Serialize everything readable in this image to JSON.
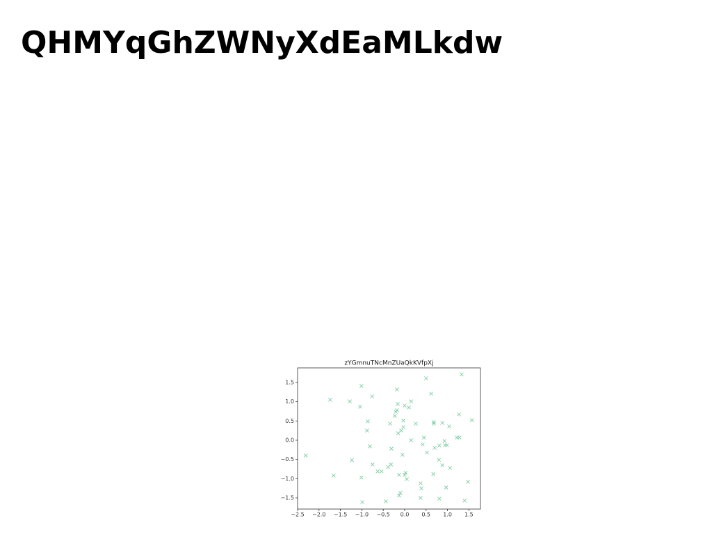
{
  "heading": "QHMYqGhZWNyXdEaMLkdw",
  "chart_data": {
    "type": "scatter",
    "title": "zYGmnuTNcMnZUaQkKVfpXj",
    "color": "#3cb371",
    "marker": "x",
    "x": [
      -2.31,
      -1.74,
      -1.66,
      -1.28,
      -1.23,
      -1.01,
      -1.04,
      -0.86,
      -0.88,
      -0.76,
      -0.81,
      -0.75,
      -1.01,
      -0.99,
      -0.63,
      -0.54,
      -0.44,
      -0.39,
      -0.32,
      -0.31,
      -0.34,
      -0.18,
      -0.21,
      -0.18,
      -0.23,
      -0.16,
      -0.15,
      -0.08,
      -0.03,
      -0.03,
      0.0,
      0.1,
      0.15,
      -0.05,
      -0.13,
      0.02,
      0.05,
      0.0,
      -0.1,
      -0.13,
      0.15,
      0.26,
      0.5,
      0.62,
      0.45,
      0.42,
      0.52,
      0.68,
      0.68,
      0.7,
      0.67,
      0.37,
      0.39,
      0.37,
      0.81,
      0.8,
      0.88,
      0.81,
      0.88,
      0.93,
      0.94,
      0.99,
      1.04,
      1.06,
      0.97,
      1.22,
      1.28,
      1.27,
      1.33,
      1.57,
      1.48,
      1.4
    ],
    "values": [
      -0.4,
      1.05,
      -0.92,
      1.01,
      -0.52,
      1.41,
      0.87,
      0.49,
      0.25,
      1.14,
      -0.16,
      -0.63,
      -0.97,
      -1.61,
      -0.81,
      -0.81,
      -1.59,
      -0.7,
      -0.63,
      -0.22,
      0.43,
      1.32,
      0.74,
      0.78,
      0.63,
      0.94,
      0.18,
      0.25,
      0.34,
      0.51,
      0.9,
      0.85,
      1.01,
      -0.38,
      -0.9,
      -0.85,
      -1.01,
      -0.9,
      -1.37,
      -1.44,
      0.0,
      0.43,
      1.61,
      1.21,
      0.07,
      -0.11,
      -0.32,
      0.47,
      0.43,
      -0.2,
      -0.88,
      -1.12,
      -1.25,
      -1.5,
      -0.14,
      -0.51,
      -0.65,
      -1.52,
      0.45,
      -0.02,
      -0.13,
      -0.13,
      0.36,
      -0.72,
      -1.23,
      0.07,
      0.07,
      0.67,
      1.71,
      0.52,
      -1.08,
      -1.57
    ],
    "xlim": [
      -2.5,
      1.77
    ],
    "ylim": [
      -1.79,
      1.88
    ],
    "xticks": [
      {
        "value": -2.5,
        "label": "−2.5"
      },
      {
        "value": -2.0,
        "label": "−2.0"
      },
      {
        "value": -1.5,
        "label": "−1.5"
      },
      {
        "value": -1.0,
        "label": "−1.0"
      },
      {
        "value": -0.5,
        "label": "−0.5"
      },
      {
        "value": 0,
        "label": "0.0"
      },
      0.5,
      {
        "value": 1,
        "label": "1.0"
      },
      1.5
    ],
    "yticks": [
      {
        "value": -1.5,
        "label": "−1.5"
      },
      {
        "value": -1.0,
        "label": "−1.0"
      },
      {
        "value": -0.5,
        "label": "−0.5"
      },
      {
        "value": 0,
        "label": "0.0"
      },
      0.5,
      {
        "value": 1,
        "label": "1.0"
      },
      1.5
    ]
  }
}
